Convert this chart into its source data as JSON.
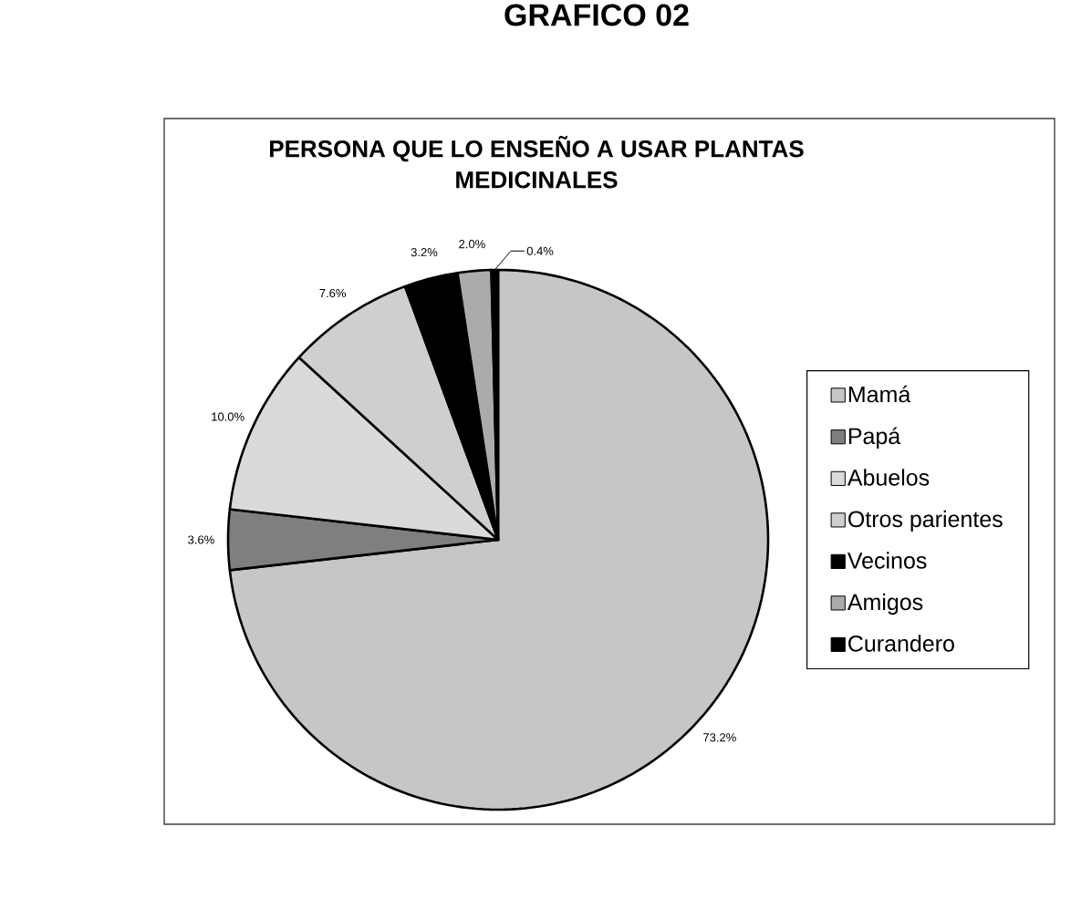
{
  "chart_data": {
    "type": "pie",
    "title": "PERSONA QUE LO ENSEÑO A USAR PLANTAS MEDICINALES",
    "annotations": [
      "GRAFICO 02"
    ],
    "categories": [
      "Mamá",
      "Papá",
      "Abuelos",
      "Otros parientes",
      "Vecinos",
      "Amigos",
      "Curandero"
    ],
    "values": [
      73.2,
      3.6,
      10.0,
      7.6,
      3.2,
      2.0,
      0.4
    ],
    "value_labels": [
      "73.2%",
      "3.6%",
      "10.0%",
      "7.6%",
      "3.2%",
      "2.0%",
      "0.4%"
    ],
    "colors": [
      "#c6c6c6",
      "#7f7f7f",
      "#dadada",
      "#cfcfcf",
      "#000000",
      "#ababab",
      "#000000"
    ],
    "legend": "right"
  }
}
